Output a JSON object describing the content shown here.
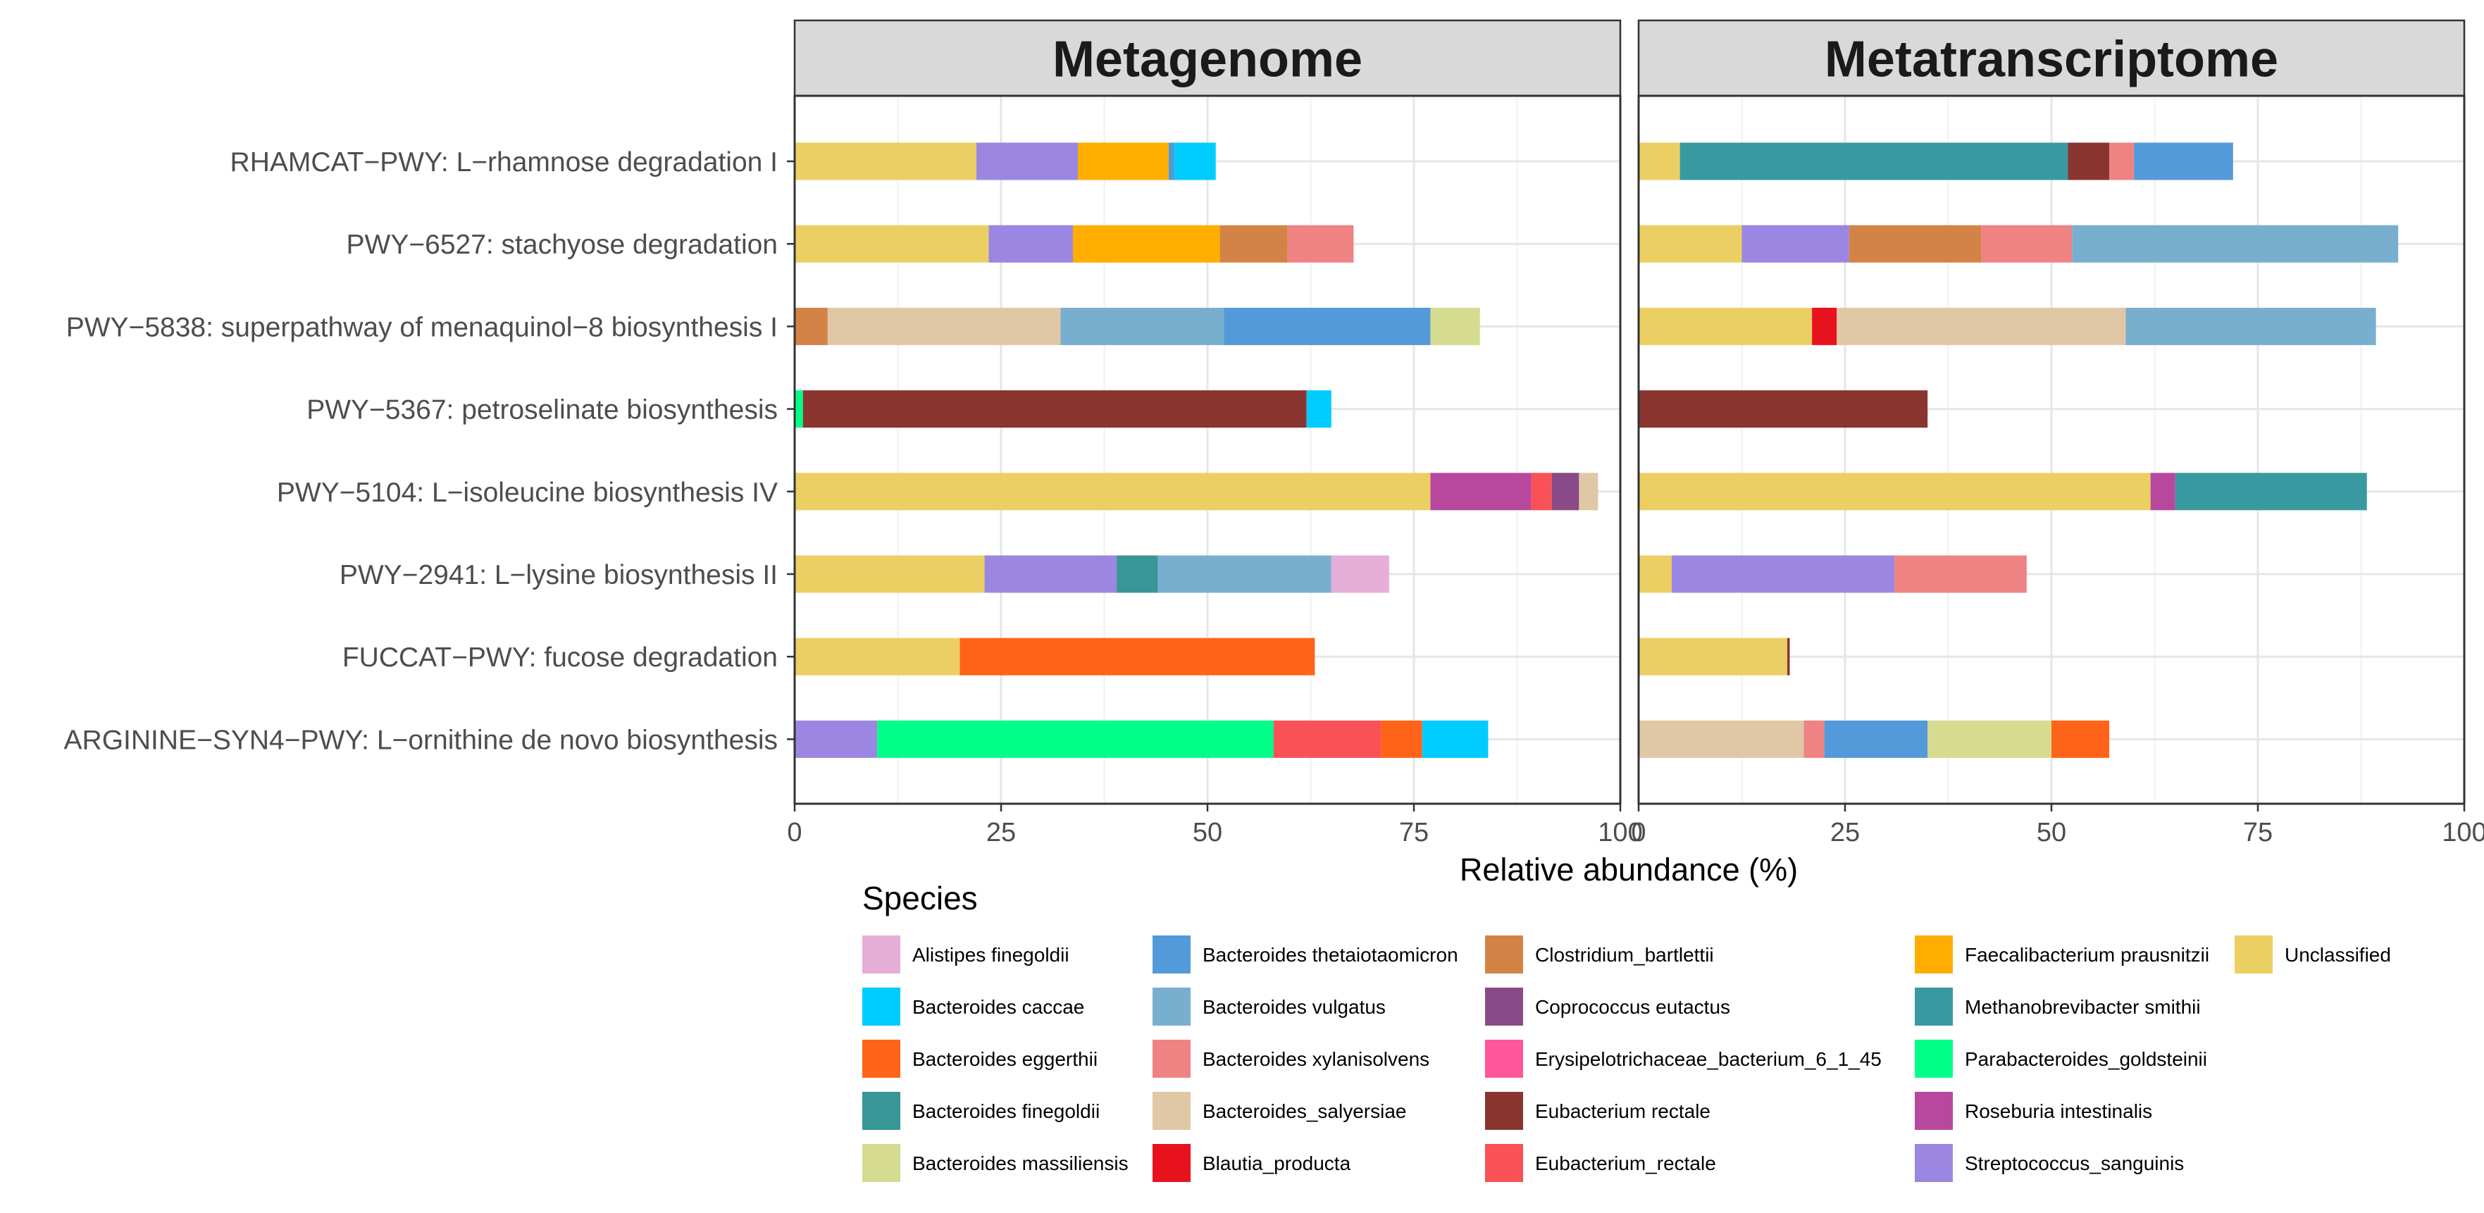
{
  "chart_data": {
    "type": "bar",
    "orientation": "horizontal",
    "stacked": true,
    "facets": [
      "Metagenome",
      "Metatranscriptome"
    ],
    "categories": [
      "RHAMCAT−PWY: L−rhamnose degradation I",
      "PWY−6527: stachyose degradation",
      "PWY−5838: superpathway of menaquinol−8 biosynthesis I",
      "PWY−5367: petroselinate biosynthesis",
      "PWY−5104: L−isoleucine biosynthesis IV",
      "PWY−2941: L−lysine biosynthesis II",
      "FUCCAT−PWY: fucose degradation",
      "ARGININE−SYN4−PWY: L−ornithine de novo  biosynthesis"
    ],
    "xlabel": "Relative abundance (%)",
    "xlim": [
      0,
      100
    ],
    "xticks": [
      0,
      25,
      50,
      75,
      100
    ],
    "grid": true,
    "legend_title": "Species",
    "legend_position": "bottom",
    "species": [
      {
        "name": "Alistipes finegoldii",
        "color": "#E5AED8"
      },
      {
        "name": "Bacteroides caccae",
        "color": "#00CCFF"
      },
      {
        "name": "Bacteroides eggerthii",
        "color": "#FF6319"
      },
      {
        "name": "Bacteroides finegoldii",
        "color": "#389696"
      },
      {
        "name": "Bacteroides massiliensis",
        "color": "#D5DB8F"
      },
      {
        "name": "Bacteroides thetaiotaomicron",
        "color": "#529AD9"
      },
      {
        "name": "Bacteroides vulgatus",
        "color": "#78AFCF"
      },
      {
        "name": "Bacteroides xylanisolvens",
        "color": "#EF8383"
      },
      {
        "name": "Bacteroides_salyersiae",
        "color": "#E0C8A6"
      },
      {
        "name": "Blautia_producta",
        "color": "#E8121F"
      },
      {
        "name": "Clostridium_bartlettii",
        "color": "#D48347"
      },
      {
        "name": "Coprococcus eutactus",
        "color": "#8A4A87"
      },
      {
        "name": "Erysipelotrichaceae_bacterium_6_1_45",
        "color": "#FF5599"
      },
      {
        "name": "Eubacterium rectale",
        "color": "#8B3530"
      },
      {
        "name": "Eubacterium_rectale",
        "color": "#FA5157"
      },
      {
        "name": "Faecalibacterium prausnitzii",
        "color": "#FFAE00"
      },
      {
        "name": "Methanobrevibacter smithii",
        "color": "#389AA0"
      },
      {
        "name": "Parabacteroides_goldsteinii",
        "color": "#00FF88"
      },
      {
        "name": "Roseburia intestinalis",
        "color": "#B8489E"
      },
      {
        "name": "Streptococcus_sanguinis",
        "color": "#9B87E2"
      },
      {
        "name": "Unclassified",
        "color": "#ECCF63"
      }
    ],
    "panels": [
      {
        "facet": "Metagenome",
        "bars": [
          {
            "category": 0,
            "segments": [
              [
                "Unclassified",
                22
              ],
              [
                "Streptococcus_sanguinis",
                12.3
              ],
              [
                "Faecalibacterium prausnitzii",
                11
              ],
              [
                "Bacteroides thetaiotaomicron",
                0.7
              ],
              [
                "Bacteroides caccae",
                5
              ]
            ]
          },
          {
            "category": 1,
            "segments": [
              [
                "Unclassified",
                23.5
              ],
              [
                "Streptococcus_sanguinis",
                10.2
              ],
              [
                "Faecalibacterium prausnitzii",
                17.8
              ],
              [
                "Clostridium_bartlettii",
                8.2
              ],
              [
                "Bacteroides xylanisolvens",
                8
              ]
            ]
          },
          {
            "category": 2,
            "segments": [
              [
                "Clostridium_bartlettii",
                4
              ],
              [
                "Bacteroides_salyersiae",
                28.2
              ],
              [
                "Bacteroides vulgatus",
                19.8
              ],
              [
                "Bacteroides thetaiotaomicron",
                25
              ],
              [
                "Bacteroides massiliensis",
                6
              ]
            ]
          },
          {
            "category": 3,
            "segments": [
              [
                "Parabacteroides_goldsteinii",
                1
              ],
              [
                "Eubacterium rectale",
                61
              ],
              [
                "Bacteroides caccae",
                3
              ]
            ]
          },
          {
            "category": 4,
            "segments": [
              [
                "Unclassified",
                77
              ],
              [
                "Roseburia intestinalis",
                12.2
              ],
              [
                "Eubacterium_rectale",
                2.5
              ],
              [
                "Coprococcus eutactus",
                3.3
              ],
              [
                "Bacteroides_salyersiae",
                2.3
              ]
            ]
          },
          {
            "category": 5,
            "segments": [
              [
                "Unclassified",
                23
              ],
              [
                "Streptococcus_sanguinis",
                16
              ],
              [
                "Bacteroides finegoldii",
                5
              ],
              [
                "Bacteroides vulgatus",
                21
              ],
              [
                "Alistipes finegoldii",
                7
              ]
            ]
          },
          {
            "category": 6,
            "segments": [
              [
                "Unclassified",
                20
              ],
              [
                "Bacteroides eggerthii",
                43
              ]
            ]
          },
          {
            "category": 7,
            "segments": [
              [
                "Streptococcus_sanguinis",
                10
              ],
              [
                "Parabacteroides_goldsteinii",
                48
              ],
              [
                "Eubacterium_rectale",
                13
              ],
              [
                "Bacteroides eggerthii",
                5
              ],
              [
                "Bacteroides caccae",
                8
              ]
            ]
          }
        ]
      },
      {
        "facet": "Metatranscriptome",
        "bars": [
          {
            "category": 0,
            "segments": [
              [
                "Unclassified",
                5
              ],
              [
                "Methanobrevibacter smithii",
                47
              ],
              [
                "Eubacterium rectale",
                5
              ],
              [
                "Bacteroides xylanisolvens",
                3
              ],
              [
                "Bacteroides thetaiotaomicron",
                12
              ]
            ]
          },
          {
            "category": 1,
            "segments": [
              [
                "Unclassified",
                12.5
              ],
              [
                "Streptococcus_sanguinis",
                13
              ],
              [
                "Clostridium_bartlettii",
                16
              ],
              [
                "Bacteroides xylanisolvens",
                11
              ],
              [
                "Bacteroides vulgatus",
                39.5
              ]
            ]
          },
          {
            "category": 2,
            "segments": [
              [
                "Unclassified",
                21
              ],
              [
                "Blautia_producta",
                3
              ],
              [
                "Bacteroides_salyersiae",
                35
              ],
              [
                "Bacteroides vulgatus",
                30.3
              ]
            ]
          },
          {
            "category": 3,
            "segments": [
              [
                "Eubacterium rectale",
                35
              ]
            ]
          },
          {
            "category": 4,
            "segments": [
              [
                "Unclassified",
                62
              ],
              [
                "Roseburia intestinalis",
                3
              ],
              [
                "Methanobrevibacter smithii",
                23.2
              ]
            ]
          },
          {
            "category": 5,
            "segments": [
              [
                "Unclassified",
                4
              ],
              [
                "Streptococcus_sanguinis",
                27
              ],
              [
                "Bacteroides xylanisolvens",
                16
              ]
            ]
          },
          {
            "category": 6,
            "segments": [
              [
                "Unclassified",
                18
              ],
              [
                "Eubacterium rectale",
                0.3
              ]
            ]
          },
          {
            "category": 7,
            "segments": [
              [
                "Bacteroides_salyersiae",
                20
              ],
              [
                "Bacteroides xylanisolvens",
                2.5
              ],
              [
                "Bacteroides thetaiotaomicron",
                12.5
              ],
              [
                "Bacteroides massiliensis",
                15
              ],
              [
                "Bacteroides eggerthii",
                7
              ]
            ]
          }
        ]
      }
    ]
  }
}
